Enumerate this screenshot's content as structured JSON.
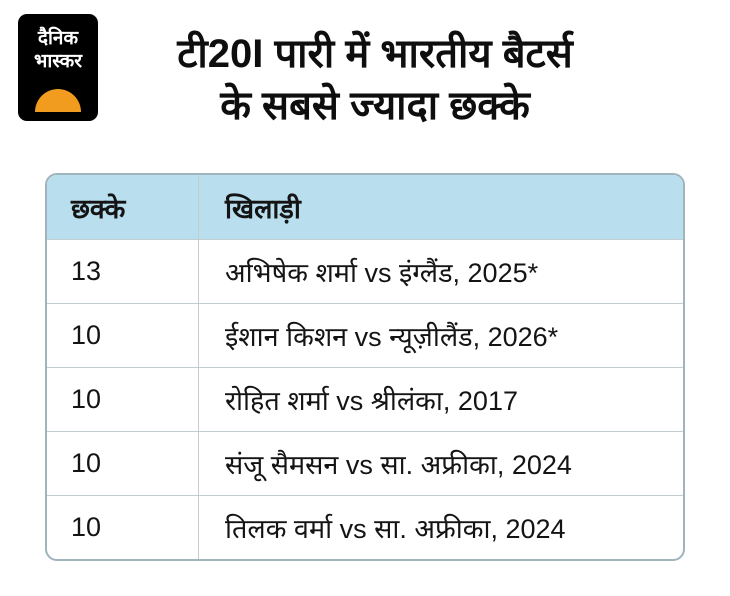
{
  "brand": {
    "line1": "दैनिक",
    "line2": "भास्कर"
  },
  "title": {
    "line1": "टी20I पारी में भारतीय बैटर्स",
    "line2": "के सबसे ज्यादा छक्के"
  },
  "table": {
    "headers": [
      "छक्के",
      "खिलाड़ी"
    ],
    "rows": [
      {
        "sixes": "13",
        "player": "अभिषेक शर्मा vs इंग्लैंड, 2025*"
      },
      {
        "sixes": "10",
        "player": "ईशान किशन vs न्यूज़ीलैंड, 2026*"
      },
      {
        "sixes": "10",
        "player": "रोहित शर्मा vs श्रीलंका, 2017"
      },
      {
        "sixes": "10",
        "player": "संजू सैमसन vs सा. अफ्रीका, 2024"
      },
      {
        "sixes": "10",
        "player": "तिलक वर्मा vs सा. अफ्रीका, 2024"
      }
    ]
  },
  "colors": {
    "header_bg": "#b9dfef",
    "table_border": "#9fb4bc",
    "row_divider": "#c2cdd2",
    "logo_bg": "#000000",
    "sun_orange": "#f29c1f"
  },
  "chart_data": {
    "type": "table",
    "title": "टी20I पारी में भारतीय बैटर्स के सबसे ज्यादा छक्के",
    "columns": [
      "छक्के",
      "खिलाड़ी"
    ],
    "rows": [
      [
        "13",
        "अभिषेक शर्मा vs इंग्लैंड, 2025*"
      ],
      [
        "10",
        "ईशान किशन vs न्यूज़ीलैंड, 2026*"
      ],
      [
        "10",
        "रोहित शर्मा vs श्रीलंका, 2017"
      ],
      [
        "10",
        "संजू सैमसन vs सा. अफ्रीका, 2024"
      ],
      [
        "10",
        "तिलक वर्मा vs सा. अफ्रीका, 2024"
      ]
    ]
  }
}
